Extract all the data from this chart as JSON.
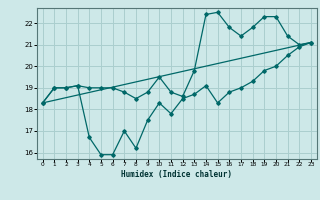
{
  "xlabel": "Humidex (Indice chaleur)",
  "bg_color": "#cde8e8",
  "grid_color": "#aacece",
  "line_color": "#006868",
  "xlim": [
    -0.5,
    23.5
  ],
  "ylim": [
    15.7,
    22.7
  ],
  "xticks": [
    0,
    1,
    2,
    3,
    4,
    5,
    6,
    7,
    8,
    9,
    10,
    11,
    12,
    13,
    14,
    15,
    16,
    17,
    18,
    19,
    20,
    21,
    22,
    23
  ],
  "yticks": [
    16,
    17,
    18,
    19,
    20,
    21,
    22
  ],
  "series1_x": [
    0,
    1,
    2,
    3,
    4,
    5,
    6,
    7,
    8,
    9,
    10,
    11,
    12,
    13,
    14,
    15,
    16,
    17,
    18,
    19,
    20,
    21,
    22,
    23
  ],
  "series1_y": [
    18.3,
    19.0,
    19.0,
    19.1,
    19.0,
    19.0,
    19.0,
    18.8,
    18.5,
    18.8,
    19.5,
    18.8,
    18.6,
    19.8,
    22.4,
    22.5,
    21.8,
    21.4,
    21.8,
    22.3,
    22.3,
    21.4,
    21.0,
    21.1
  ],
  "series2_x": [
    0,
    1,
    2,
    3,
    4,
    5,
    6,
    7,
    8,
    9,
    10,
    11,
    12,
    13,
    14,
    15,
    16,
    17,
    18,
    19,
    20,
    21,
    22,
    23
  ],
  "series2_y": [
    18.3,
    19.0,
    19.0,
    19.1,
    16.7,
    15.9,
    15.9,
    17.0,
    16.2,
    17.5,
    18.3,
    17.8,
    18.5,
    18.7,
    19.1,
    18.3,
    18.8,
    19.0,
    19.3,
    19.8,
    20.0,
    20.5,
    20.9,
    21.1
  ],
  "series3_x": [
    0,
    23
  ],
  "series3_y": [
    18.3,
    21.1
  ]
}
